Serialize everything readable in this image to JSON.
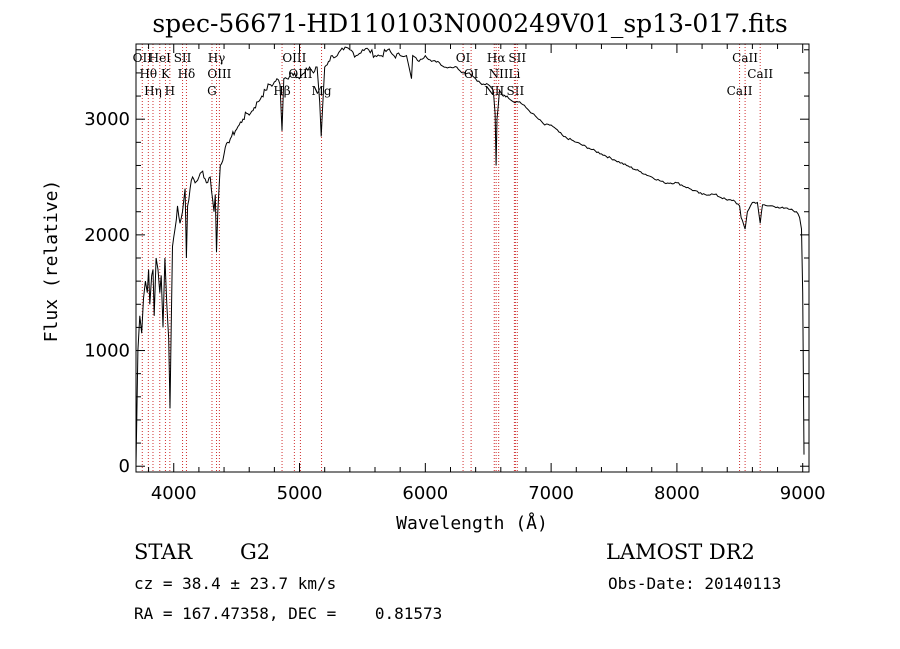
{
  "chart_data": {
    "type": "line",
    "title": "spec-56671-HD110103N000249V01_sp13-017.fits",
    "xlabel": "Wavelength (Å)",
    "ylabel": "Flux (relative)",
    "xlim": [
      3700,
      9050
    ],
    "ylim": [
      -50,
      3650
    ],
    "xticks": [
      4000,
      5000,
      6000,
      7000,
      8000,
      9000
    ],
    "yticks": [
      0,
      1000,
      2000,
      3000
    ],
    "grid": false,
    "series": [
      {
        "color": "#000000",
        "x": [
          3700,
          3715,
          3730,
          3745,
          3760,
          3775,
          3790,
          3800,
          3810,
          3825,
          3835,
          3845,
          3860,
          3875,
          3889,
          3900,
          3915,
          3930,
          3945,
          3960,
          3970,
          3990,
          4010,
          4030,
          4050,
          4070,
          4090,
          4101,
          4110,
          4130,
          4150,
          4170,
          4200,
          4230,
          4260,
          4290,
          4320,
          4330,
          4340,
          4350,
          4370,
          4400,
          4430,
          4460,
          4490,
          4520,
          4550,
          4580,
          4610,
          4640,
          4670,
          4700,
          4730,
          4760,
          4790,
          4820,
          4845,
          4861,
          4875,
          4900,
          4930,
          4960,
          5000,
          5040,
          5080,
          5110,
          5140,
          5160,
          5172,
          5183,
          5200,
          5230,
          5260,
          5300,
          5350,
          5400,
          5450,
          5500,
          5550,
          5600,
          5650,
          5700,
          5750,
          5800,
          5850,
          5890,
          5900,
          5950,
          6000,
          6050,
          6100,
          6150,
          6200,
          6250,
          6300,
          6350,
          6400,
          6450,
          6500,
          6540,
          6555,
          6563,
          6570,
          6590,
          6620,
          6650,
          6700,
          6750,
          6800,
          6850,
          6900,
          6950,
          7000,
          7100,
          7200,
          7300,
          7400,
          7500,
          7600,
          7700,
          7800,
          7900,
          8000,
          8100,
          8200,
          8300,
          8400,
          8450,
          8498,
          8510,
          8542,
          8560,
          8600,
          8640,
          8662,
          8680,
          8720,
          8760,
          8800,
          8850,
          8900,
          8950,
          8975,
          8990,
          9000,
          9010
        ],
        "y": [
          0,
          1000,
          1300,
          1150,
          1450,
          1600,
          1500,
          1700,
          1400,
          1650,
          1700,
          1300,
          1800,
          1700,
          1500,
          1650,
          1200,
          1800,
          1400,
          1100,
          500,
          1900,
          2050,
          2250,
          2100,
          2200,
          2400,
          1800,
          2250,
          2400,
          2500,
          2450,
          2500,
          2550,
          2450,
          2500,
          2200,
          2350,
          1850,
          2200,
          2600,
          2700,
          2800,
          2850,
          2900,
          2950,
          3000,
          3050,
          3050,
          3100,
          3150,
          3200,
          3250,
          3300,
          3300,
          3350,
          3300,
          2900,
          3350,
          3350,
          3400,
          3400,
          3350,
          3400,
          3450,
          3400,
          3450,
          3150,
          2850,
          3100,
          3450,
          3500,
          3550,
          3550,
          3600,
          3600,
          3550,
          3600,
          3600,
          3550,
          3550,
          3600,
          3550,
          3550,
          3550,
          3350,
          3550,
          3500,
          3550,
          3500,
          3500,
          3450,
          3450,
          3450,
          3400,
          3400,
          3350,
          3300,
          3300,
          3250,
          3050,
          2600,
          3000,
          3250,
          3200,
          3200,
          3150,
          3150,
          3100,
          3050,
          3000,
          2950,
          2950,
          2850,
          2800,
          2750,
          2700,
          2650,
          2600,
          2550,
          2500,
          2450,
          2450,
          2400,
          2350,
          2350,
          2300,
          2300,
          2250,
          2150,
          2050,
          2200,
          2280,
          2280,
          2100,
          2260,
          2250,
          2250,
          2240,
          2230,
          2220,
          2200,
          2150,
          2050,
          1500,
          100
        ]
      }
    ],
    "lines": [
      {
        "x": 3750,
        "label": "OII"
      },
      {
        "x": 3798,
        "label": "Hθ"
      },
      {
        "x": 3835,
        "label": "Hη"
      },
      {
        "x": 3889,
        "label": "HeI"
      },
      {
        "x": 3934,
        "label": "K"
      },
      {
        "x": 3969,
        "label": "H"
      },
      {
        "x": 4070,
        "label": "SII"
      },
      {
        "x": 4101,
        "label": "Hδ"
      },
      {
        "x": 4304,
        "label": "G"
      },
      {
        "x": 4340,
        "label": "Hγ"
      },
      {
        "x": 4363,
        "label": "OIII"
      },
      {
        "x": 4861,
        "label": "Hβ"
      },
      {
        "x": 4959,
        "label": "OIII"
      },
      {
        "x": 5007,
        "label": "OIII"
      },
      {
        "x": 5175,
        "label": "Mg"
      },
      {
        "x": 6300,
        "label": "OI"
      },
      {
        "x": 6364,
        "label": "OI"
      },
      {
        "x": 6548,
        "label": "NII"
      },
      {
        "x": 6563,
        "label": "Hα"
      },
      {
        "x": 6583,
        "label": "NII"
      },
      {
        "x": 6716,
        "label": "SII"
      },
      {
        "x": 6731,
        "label": "SII"
      },
      {
        "x": 6708,
        "label": "Li"
      },
      {
        "x": 8498,
        "label": "CaII"
      },
      {
        "x": 8542,
        "label": "CaII"
      },
      {
        "x": 8662,
        "label": "CaII"
      }
    ]
  },
  "info": {
    "class_label": "STAR",
    "subclass": "G2",
    "survey": "LAMOST DR2",
    "redshift": "cz = 38.4 ± 23.7 km/s",
    "obs_date": "Obs-Date: 20140113",
    "coords": "RA = 167.47358, DEC =    0.81573"
  }
}
